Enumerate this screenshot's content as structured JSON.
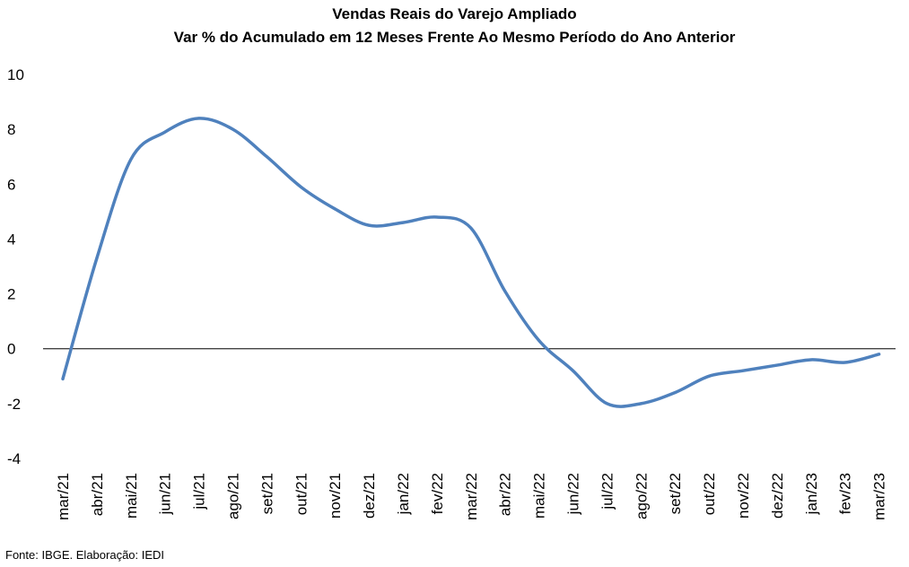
{
  "chart_data": {
    "type": "line",
    "title": "Vendas Reais do Varejo Ampliado",
    "subtitle": "Var % do Acumulado  em 12 Meses Frente Ao Mesmo Período do Ano Anterior",
    "xlabel": "",
    "ylabel": "",
    "ylim": [
      -4,
      10
    ],
    "yticks": [
      10,
      8,
      6,
      4,
      2,
      0,
      -2,
      -4
    ],
    "grid": false,
    "legend": "none",
    "line_color": "#4F81BD",
    "categories": [
      "mar/21",
      "abr/21",
      "mai/21",
      "jun/21",
      "jul/21",
      "ago/21",
      "set/21",
      "out/21",
      "nov/21",
      "dez/21",
      "jan/22",
      "fev/22",
      "mar/22",
      "abr/22",
      "mai/22",
      "jun/22",
      "jul/22",
      "ago/22",
      "set/22",
      "out/22",
      "nov/22",
      "dez/22",
      "jan/23",
      "fev/23",
      "mar/23"
    ],
    "series": [
      {
        "values": [
          -1.1,
          3.3,
          6.9,
          7.9,
          8.4,
          8.0,
          7.0,
          5.9,
          5.1,
          4.5,
          4.6,
          4.8,
          4.4,
          2.1,
          0.3,
          -0.8,
          -2.0,
          -2.0,
          -1.6,
          -1.0,
          -0.8,
          -0.6,
          -0.4,
          -0.5,
          -0.2
        ]
      }
    ]
  },
  "source": "Fonte: IBGE. Elaboração: IEDI"
}
